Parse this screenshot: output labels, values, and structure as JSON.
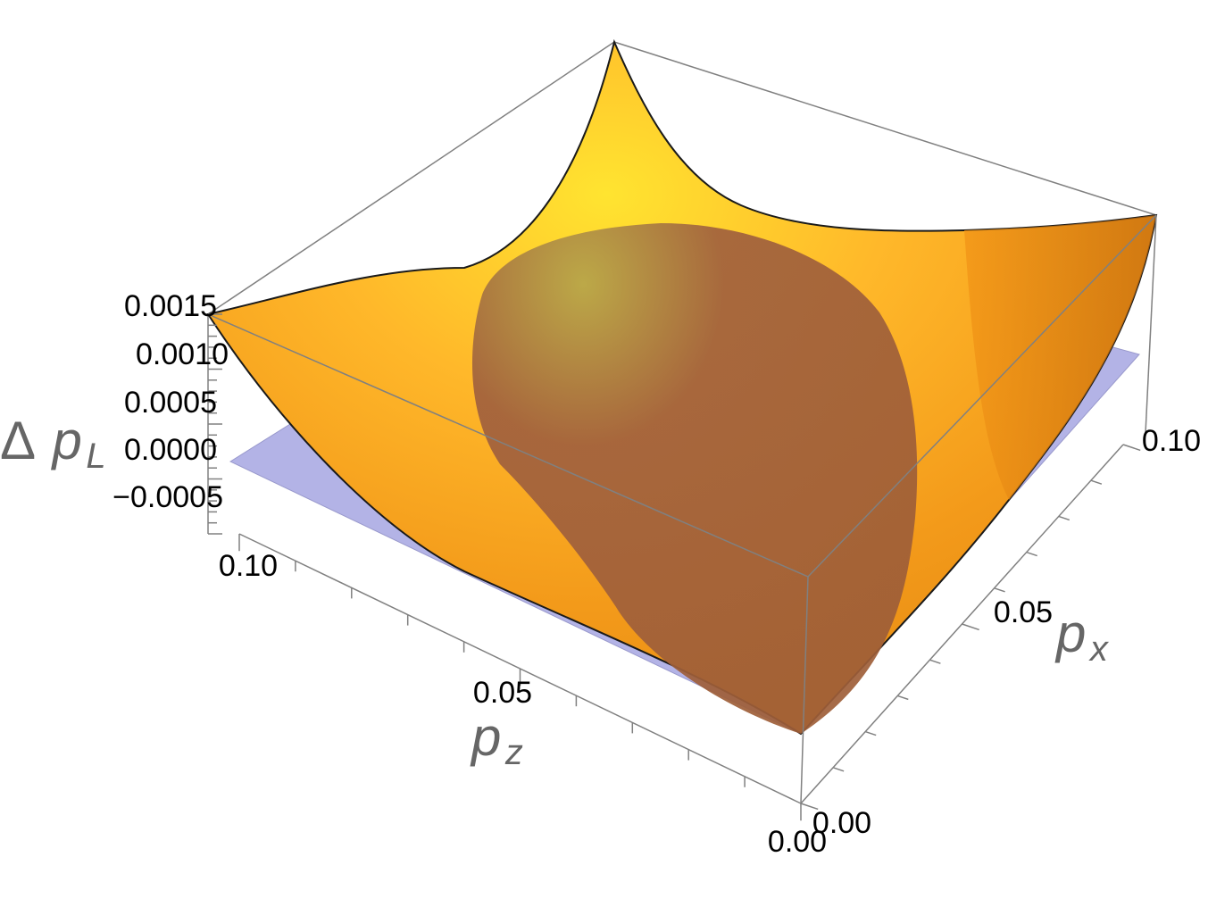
{
  "chart_data": {
    "type": "surface3d",
    "z_axis": {
      "label": "Δ",
      "var": "p",
      "sub": "L",
      "ticks": [
        "0.0015",
        "0.0010",
        "0.0005",
        "0.0000",
        "−0.0005"
      ],
      "range": [
        -0.0005,
        0.0015
      ]
    },
    "x_axis": {
      "var": "p",
      "sub": "x",
      "ticks": [
        "0.00",
        "0.05",
        "0.10"
      ],
      "range": [
        0,
        0.1
      ]
    },
    "y_axis": {
      "var": "p",
      "sub": "z",
      "ticks": [
        "0.10",
        "0.05",
        "0.00"
      ],
      "range": [
        0,
        0.1
      ]
    },
    "surface": {
      "description_values": {
        "corner_0_0": 0.0,
        "corner_01_0": 0.0015,
        "corner_0_01": 0.0015,
        "corner_01_01": 0.0015
      },
      "colors": [
        "#ffe033",
        "#ffb020",
        "#f08a10",
        "#c46a10"
      ]
    },
    "plane": {
      "z": 0.0,
      "color": "#b3b3e6"
    },
    "region": {
      "color": "#8b4a4a"
    },
    "bounding_box_color": "#808080"
  }
}
